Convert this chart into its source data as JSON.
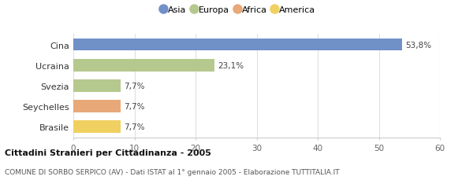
{
  "categories": [
    "Cina",
    "Ucraina",
    "Svezia",
    "Seychelles",
    "Brasile"
  ],
  "values": [
    53.8,
    23.1,
    7.7,
    7.7,
    7.7
  ],
  "labels": [
    "53,8%",
    "23,1%",
    "7,7%",
    "7,7%",
    "7,7%"
  ],
  "colors": [
    "#7090c8",
    "#b5c98e",
    "#b5c98e",
    "#e8a878",
    "#f0d060"
  ],
  "legend_items": [
    {
      "label": "Asia",
      "color": "#7090c8"
    },
    {
      "label": "Europa",
      "color": "#b5c98e"
    },
    {
      "label": "Africa",
      "color": "#e8a878"
    },
    {
      "label": "America",
      "color": "#f0d060"
    }
  ],
  "xlim": [
    0,
    60
  ],
  "xticks": [
    0,
    10,
    20,
    30,
    40,
    50,
    60
  ],
  "title": "Cittadini Stranieri per Cittadinanza - 2005",
  "subtitle": "COMUNE DI SORBO SERPICO (AV) - Dati ISTAT al 1° gennaio 2005 - Elaborazione TUTTITALIA.IT",
  "background_color": "#ffffff",
  "bar_height": 0.6,
  "grid_color": "#e0e0e0"
}
